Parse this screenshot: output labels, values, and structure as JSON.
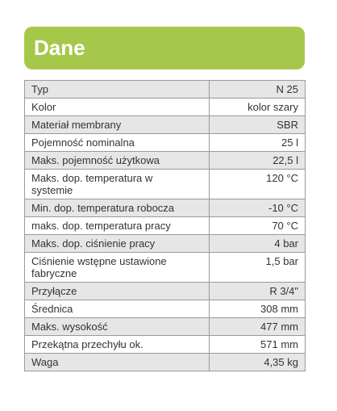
{
  "header": {
    "title": "Dane"
  },
  "table": {
    "rows": [
      [
        "Typ",
        "N 25"
      ],
      [
        "Kolor",
        "kolor szary"
      ],
      [
        "Materiał membrany",
        "SBR"
      ],
      [
        "Pojemność nominalna",
        "25 l"
      ],
      [
        "Maks. pojemność użytkowa",
        "22,5 l"
      ],
      [
        "Maks. dop. temperatura w systemie",
        "120 °C"
      ],
      [
        "Min. dop. temperatura robocza",
        "-10 °C"
      ],
      [
        "maks. dop. temperatura pracy",
        "70 °C"
      ],
      [
        "Maks. dop. ciśnienie pracy",
        "4 bar"
      ],
      [
        "Ciśnienie wstępne ustawione fabryczne",
        "1,5 bar"
      ],
      [
        "Przyłącze",
        "R 3/4\""
      ],
      [
        "Średnica",
        "308 mm"
      ],
      [
        "Maks. wysokość",
        "477 mm"
      ],
      [
        "Przekątna przechyłu ok.",
        "571 mm"
      ],
      [
        "Waga",
        "4,35 kg"
      ]
    ]
  }
}
